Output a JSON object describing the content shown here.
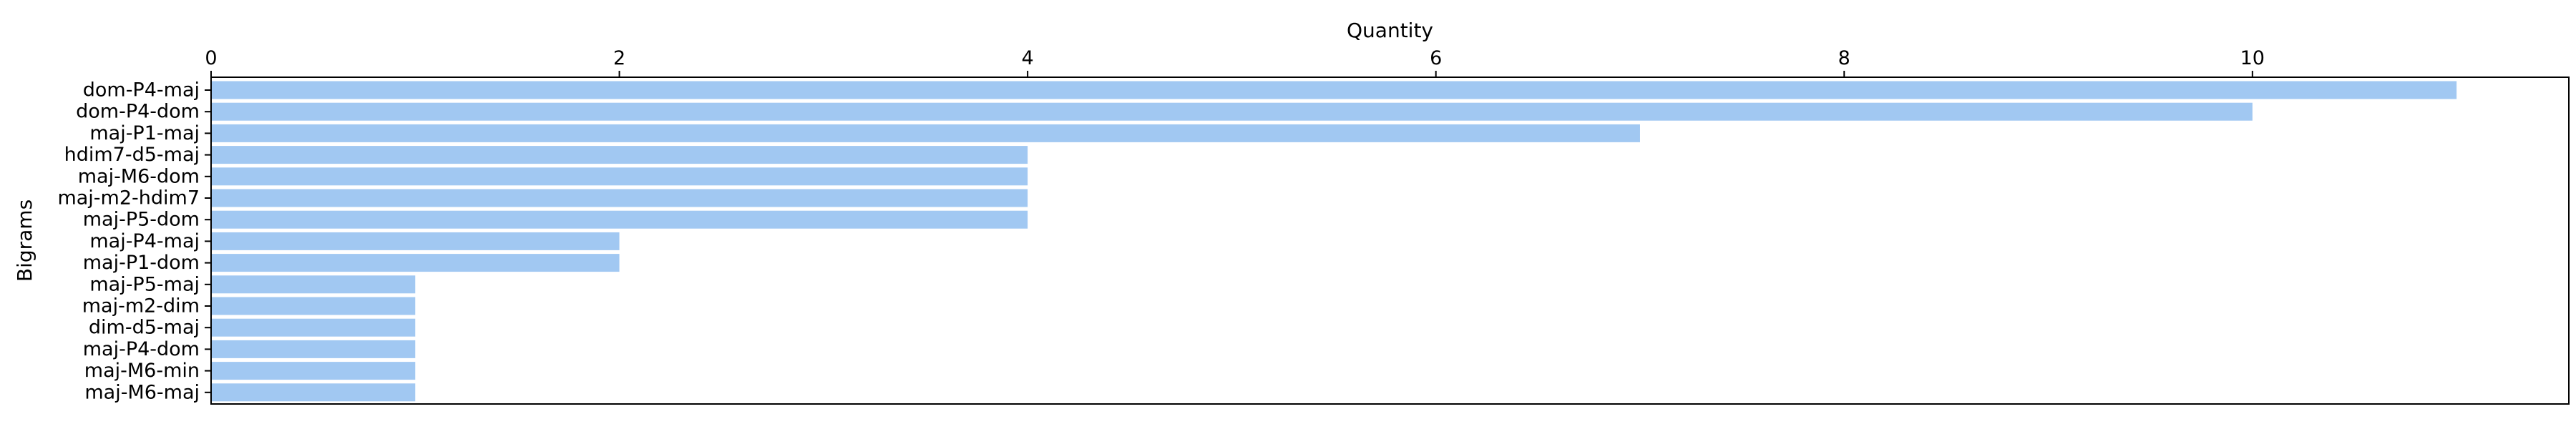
{
  "chart_data": {
    "type": "bar",
    "orientation": "horizontal",
    "title": "",
    "xlabel": "Quantity",
    "ylabel": "Bigrams",
    "xaxis_position": "top",
    "xlim": [
      0,
      11.55
    ],
    "xticks": [
      0,
      2,
      4,
      6,
      8,
      10
    ],
    "grid": false,
    "bar_color": "#a1c8f2",
    "categories": [
      "dom-P4-maj",
      "dom-P4-dom",
      "maj-P1-maj",
      "hdim7-d5-maj",
      "maj-M6-dom",
      "maj-m2-hdim7",
      "maj-P5-dom",
      "maj-P4-maj",
      "maj-P1-dom",
      "maj-P5-maj",
      "maj-m2-dim",
      "dim-d5-maj",
      "maj-P4-dom",
      "maj-M6-min",
      "maj-M6-maj"
    ],
    "values": [
      11,
      10,
      7,
      4,
      4,
      4,
      4,
      2,
      2,
      1,
      1,
      1,
      1,
      1,
      1
    ]
  }
}
